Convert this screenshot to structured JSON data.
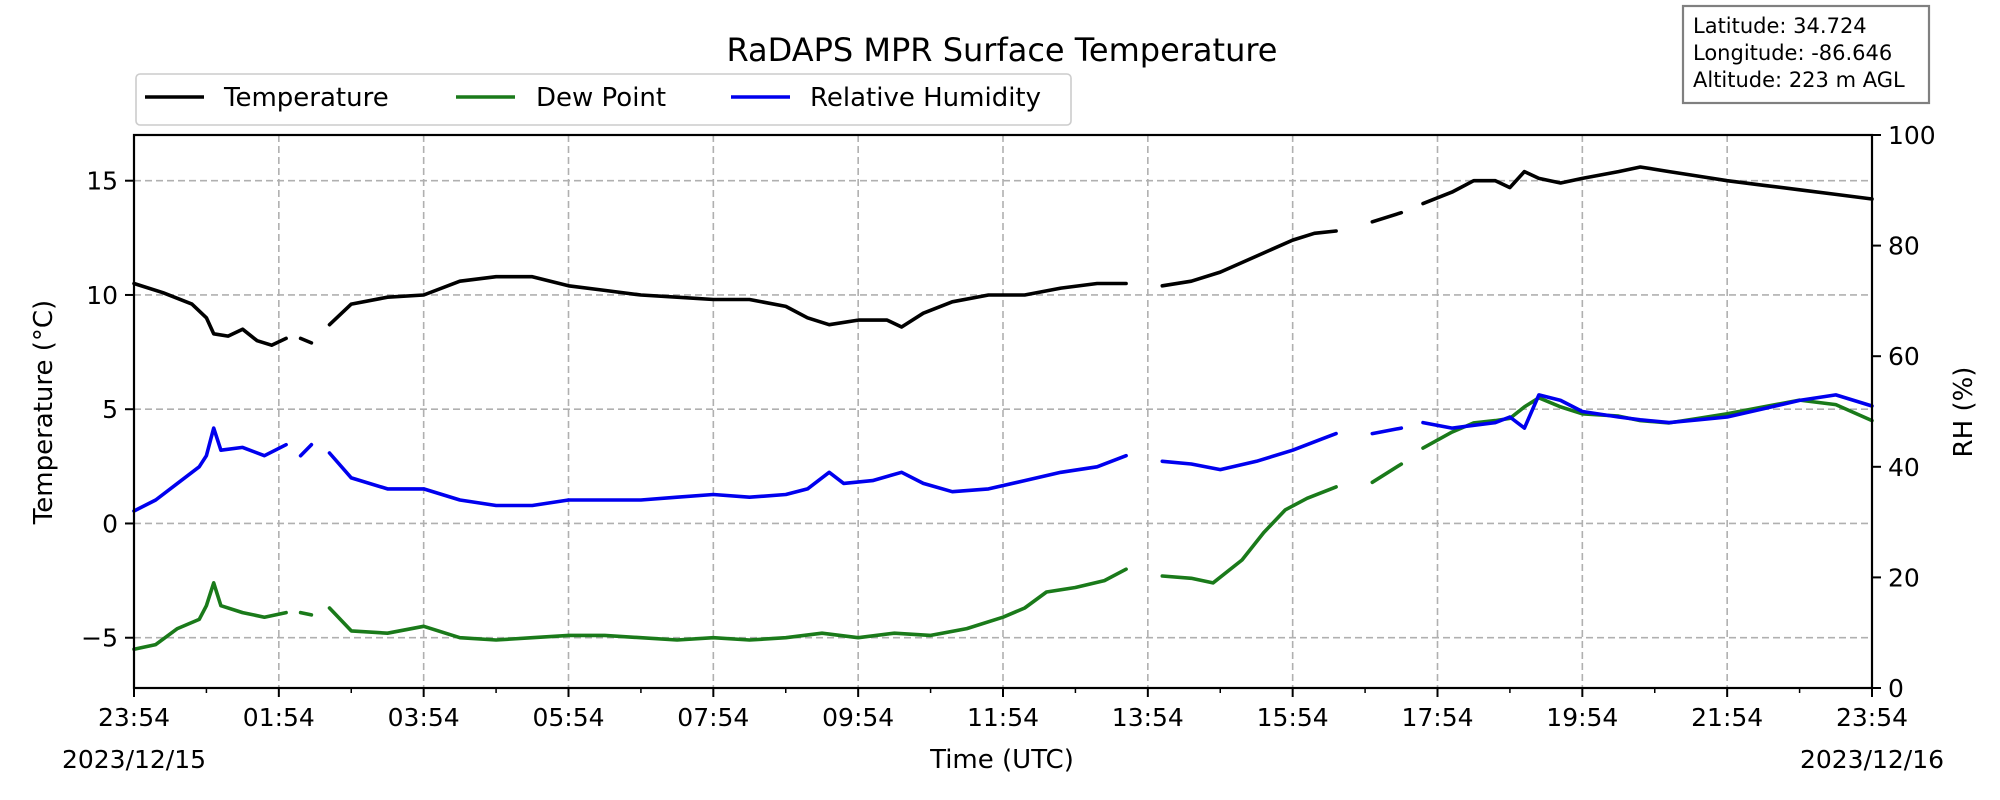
{
  "chart_data": {
    "type": "line",
    "title": "RaDAPS MPR Surface Temperature",
    "xlabel": "Time (UTC)",
    "ylabel": "Temperature ($^\\circ$C)",
    "ylabel_display": "Temperature (°C)",
    "y2label": "RH (%)",
    "ylim": [
      -7.2,
      17
    ],
    "y2lim": [
      0,
      100
    ],
    "y_ticks": [
      -5,
      0,
      5,
      10,
      15
    ],
    "y_tick_labels": [
      "−5",
      "0",
      "5",
      "10",
      "15"
    ],
    "y2_ticks": [
      0,
      20,
      40,
      60,
      80,
      100
    ],
    "y2_tick_labels": [
      "0",
      "20",
      "40",
      "60",
      "80",
      "100"
    ],
    "x_ticks": [
      "23:54",
      "01:54",
      "03:54",
      "05:54",
      "07:54",
      "09:54",
      "11:54",
      "13:54",
      "15:54",
      "17:54",
      "19:54",
      "21:54",
      "23:54"
    ],
    "start_date": "2023/12/15",
    "end_date": "2023/12/16",
    "grid": true,
    "legend_position": "top-left",
    "info_box": {
      "latitude": "Latitude: 34.724",
      "longitude": "Longitude: -86.646",
      "altitude": "Altitude: 223 m AGL"
    },
    "series": [
      {
        "name": "Temperature",
        "axis": "left",
        "color": "#000000",
        "segments": [
          [
            [
              0.0,
              10.5
            ],
            [
              0.4,
              10.1
            ],
            [
              0.8,
              9.6
            ],
            [
              1.0,
              9.0
            ],
            [
              1.1,
              8.3
            ],
            [
              1.3,
              8.2
            ],
            [
              1.5,
              8.5
            ],
            [
              1.7,
              8.0
            ],
            [
              1.9,
              7.8
            ],
            [
              2.1,
              8.1
            ]
          ],
          [
            [
              2.3,
              8.1
            ],
            [
              2.45,
              7.9
            ]
          ],
          [
            [
              2.7,
              8.7
            ],
            [
              3.0,
              9.6
            ],
            [
              3.5,
              9.9
            ],
            [
              4.0,
              10.0
            ],
            [
              4.5,
              10.6
            ],
            [
              5.0,
              10.8
            ],
            [
              5.5,
              10.8
            ],
            [
              6.0,
              10.4
            ],
            [
              6.5,
              10.2
            ],
            [
              7.0,
              10.0
            ],
            [
              7.5,
              9.9
            ],
            [
              8.0,
              9.8
            ],
            [
              8.5,
              9.8
            ],
            [
              9.0,
              9.5
            ],
            [
              9.3,
              9.0
            ],
            [
              9.6,
              8.7
            ],
            [
              10.0,
              8.9
            ],
            [
              10.4,
              8.9
            ],
            [
              10.6,
              8.6
            ],
            [
              10.9,
              9.2
            ],
            [
              11.3,
              9.7
            ],
            [
              11.8,
              10.0
            ],
            [
              12.3,
              10.0
            ],
            [
              12.8,
              10.3
            ],
            [
              13.3,
              10.5
            ],
            [
              13.7,
              10.5
            ]
          ],
          [
            [
              14.2,
              10.4
            ],
            [
              14.6,
              10.6
            ],
            [
              15.0,
              11.0
            ],
            [
              15.5,
              11.7
            ],
            [
              16.0,
              12.4
            ],
            [
              16.3,
              12.7
            ],
            [
              16.6,
              12.8
            ]
          ],
          [
            [
              17.1,
              13.2
            ],
            [
              17.5,
              13.6
            ]
          ],
          [
            [
              17.8,
              14.0
            ],
            [
              18.2,
              14.5
            ],
            [
              18.5,
              15.0
            ],
            [
              18.8,
              15.0
            ],
            [
              19.0,
              14.7
            ],
            [
              19.2,
              15.4
            ],
            [
              19.4,
              15.1
            ],
            [
              19.7,
              14.9
            ],
            [
              20.0,
              15.1
            ],
            [
              20.5,
              15.4
            ],
            [
              20.8,
              15.6
            ],
            [
              21.2,
              15.4
            ],
            [
              21.6,
              15.2
            ],
            [
              22.0,
              15.0
            ],
            [
              22.5,
              14.8
            ],
            [
              23.0,
              14.6
            ],
            [
              23.5,
              14.4
            ],
            [
              24.0,
              14.2
            ]
          ]
        ]
      },
      {
        "name": "Dew Point",
        "axis": "left",
        "color": "#1a7a1a",
        "segments": [
          [
            [
              0.0,
              -5.5
            ],
            [
              0.3,
              -5.3
            ],
            [
              0.6,
              -4.6
            ],
            [
              0.9,
              -4.2
            ],
            [
              1.0,
              -3.6
            ],
            [
              1.1,
              -2.6
            ],
            [
              1.2,
              -3.6
            ],
            [
              1.5,
              -3.9
            ],
            [
              1.8,
              -4.1
            ],
            [
              2.1,
              -3.9
            ]
          ],
          [
            [
              2.3,
              -3.9
            ],
            [
              2.45,
              -4.0
            ]
          ],
          [
            [
              2.7,
              -3.7
            ],
            [
              3.0,
              -4.7
            ],
            [
              3.5,
              -4.8
            ],
            [
              4.0,
              -4.5
            ],
            [
              4.5,
              -5.0
            ],
            [
              5.0,
              -5.1
            ],
            [
              5.5,
              -5.0
            ],
            [
              6.0,
              -4.9
            ],
            [
              6.5,
              -4.9
            ],
            [
              7.0,
              -5.0
            ],
            [
              7.5,
              -5.1
            ],
            [
              8.0,
              -5.0
            ],
            [
              8.5,
              -5.1
            ],
            [
              9.0,
              -5.0
            ],
            [
              9.5,
              -4.8
            ],
            [
              10.0,
              -5.0
            ],
            [
              10.5,
              -4.8
            ],
            [
              11.0,
              -4.9
            ],
            [
              11.5,
              -4.6
            ],
            [
              12.0,
              -4.1
            ],
            [
              12.3,
              -3.7
            ],
            [
              12.6,
              -3.0
            ],
            [
              13.0,
              -2.8
            ],
            [
              13.4,
              -2.5
            ],
            [
              13.7,
              -2.0
            ]
          ],
          [
            [
              14.2,
              -2.3
            ],
            [
              14.6,
              -2.4
            ],
            [
              14.9,
              -2.6
            ],
            [
              15.3,
              -1.6
            ],
            [
              15.6,
              -0.4
            ],
            [
              15.9,
              0.6
            ],
            [
              16.2,
              1.1
            ],
            [
              16.6,
              1.6
            ]
          ],
          [
            [
              17.1,
              1.8
            ],
            [
              17.5,
              2.6
            ]
          ],
          [
            [
              17.8,
              3.3
            ],
            [
              18.2,
              4.0
            ],
            [
              18.5,
              4.4
            ],
            [
              18.8,
              4.5
            ],
            [
              19.0,
              4.6
            ],
            [
              19.2,
              5.1
            ],
            [
              19.4,
              5.5
            ],
            [
              19.7,
              5.1
            ],
            [
              20.0,
              4.8
            ],
            [
              20.5,
              4.7
            ],
            [
              20.8,
              4.5
            ],
            [
              21.2,
              4.4
            ],
            [
              21.6,
              4.6
            ],
            [
              22.0,
              4.8
            ],
            [
              22.5,
              5.1
            ],
            [
              23.0,
              5.4
            ],
            [
              23.5,
              5.2
            ],
            [
              24.0,
              4.5
            ]
          ]
        ]
      },
      {
        "name": "Relative Humidity",
        "axis": "right",
        "color": "#0000ee",
        "segments": [
          [
            [
              0.0,
              32.0
            ],
            [
              0.3,
              34.0
            ],
            [
              0.6,
              37.0
            ],
            [
              0.9,
              40.0
            ],
            [
              1.0,
              42.0
            ],
            [
              1.1,
              47.0
            ],
            [
              1.2,
              43.0
            ],
            [
              1.5,
              43.5
            ],
            [
              1.8,
              42.0
            ],
            [
              2.1,
              44.0
            ]
          ],
          [
            [
              2.3,
              42.0
            ],
            [
              2.45,
              44.0
            ]
          ],
          [
            [
              2.7,
              42.5
            ],
            [
              3.0,
              38.0
            ],
            [
              3.5,
              36.0
            ],
            [
              4.0,
              36.0
            ],
            [
              4.5,
              34.0
            ],
            [
              5.0,
              33.0
            ],
            [
              5.5,
              33.0
            ],
            [
              6.0,
              34.0
            ],
            [
              6.5,
              34.0
            ],
            [
              7.0,
              34.0
            ],
            [
              7.5,
              34.5
            ],
            [
              8.0,
              35.0
            ],
            [
              8.5,
              34.5
            ],
            [
              9.0,
              35.0
            ],
            [
              9.3,
              36.0
            ],
            [
              9.6,
              39.0
            ],
            [
              9.8,
              37.0
            ],
            [
              10.2,
              37.5
            ],
            [
              10.6,
              39.0
            ],
            [
              10.9,
              37.0
            ],
            [
              11.3,
              35.5
            ],
            [
              11.8,
              36.0
            ],
            [
              12.3,
              37.5
            ],
            [
              12.8,
              39.0
            ],
            [
              13.3,
              40.0
            ],
            [
              13.7,
              42.0
            ]
          ],
          [
            [
              14.2,
              41.0
            ],
            [
              14.6,
              40.5
            ],
            [
              15.0,
              39.5
            ],
            [
              15.5,
              41.0
            ],
            [
              16.0,
              43.0
            ],
            [
              16.4,
              45.0
            ],
            [
              16.6,
              46.0
            ]
          ],
          [
            [
              17.1,
              46.0
            ],
            [
              17.5,
              47.0
            ]
          ],
          [
            [
              17.8,
              48.0
            ],
            [
              18.2,
              47.0
            ],
            [
              18.5,
              47.5
            ],
            [
              18.8,
              48.0
            ],
            [
              19.0,
              49.0
            ],
            [
              19.2,
              47.0
            ],
            [
              19.4,
              53.0
            ],
            [
              19.7,
              52.0
            ],
            [
              20.0,
              50.0
            ],
            [
              20.5,
              49.0
            ],
            [
              20.8,
              48.5
            ],
            [
              21.2,
              48.0
            ],
            [
              21.6,
              48.5
            ],
            [
              22.0,
              49.0
            ],
            [
              22.5,
              50.5
            ],
            [
              23.0,
              52.0
            ],
            [
              23.5,
              53.0
            ],
            [
              24.0,
              51.0
            ]
          ]
        ]
      }
    ]
  }
}
